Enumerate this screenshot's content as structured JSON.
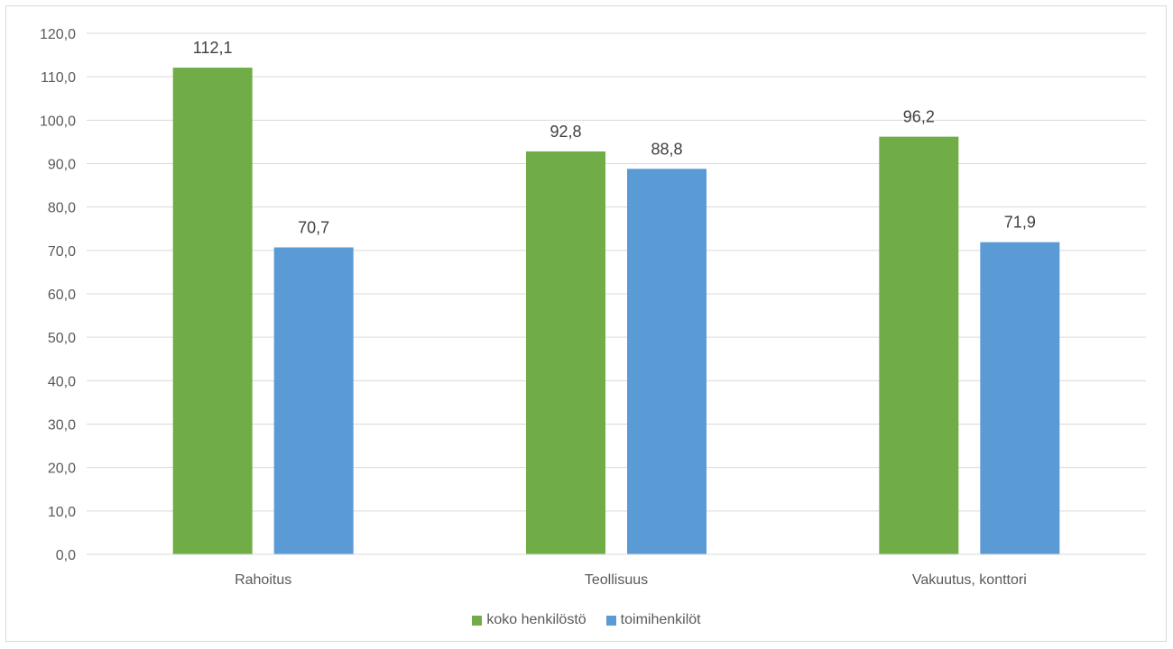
{
  "chart_data": {
    "type": "bar",
    "title": "",
    "xlabel": "",
    "ylabel": "",
    "categories": [
      "Rahoitus",
      "Teollisuus",
      "Vakuutus, konttori"
    ],
    "series": [
      {
        "name": "koko henkilöstö",
        "color": "#70ad47",
        "values": [
          112.1,
          92.8,
          96.2
        ],
        "labels": [
          "112,1",
          "92,8",
          "96,2"
        ]
      },
      {
        "name": "toimihenkilöt",
        "color": "#5b9bd5",
        "values": [
          70.7,
          88.8,
          71.9
        ],
        "labels": [
          "70,7",
          "88,8",
          "71,9"
        ]
      }
    ],
    "ylim": [
      0,
      120
    ],
    "yticks": [
      0,
      10,
      20,
      30,
      40,
      50,
      60,
      70,
      80,
      90,
      100,
      110,
      120
    ],
    "ytick_labels": [
      "0,0",
      "10,0",
      "20,0",
      "30,0",
      "40,0",
      "50,0",
      "60,0",
      "70,0",
      "80,0",
      "90,0",
      "100,0",
      "110,0",
      "120,0"
    ],
    "grid": true,
    "legend_position": "bottom-center",
    "gridline_color": "#d9d9d9"
  }
}
